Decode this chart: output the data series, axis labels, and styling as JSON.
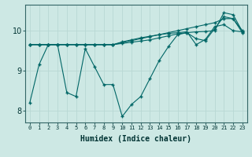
{
  "xlabel": "Humidex (Indice chaleur)",
  "ylabel": "",
  "bg_color": "#cde8e4",
  "line_color": "#006666",
  "grid_color": "#b8d8d4",
  "xlim": [
    -0.5,
    23.5
  ],
  "ylim": [
    7.7,
    10.65
  ],
  "yticks": [
    8,
    9,
    10
  ],
  "xticks": [
    0,
    1,
    2,
    3,
    4,
    5,
    6,
    7,
    8,
    9,
    10,
    11,
    12,
    13,
    14,
    15,
    16,
    17,
    18,
    19,
    20,
    21,
    22,
    23
  ],
  "series": [
    [
      8.2,
      9.15,
      9.65,
      9.65,
      8.45,
      8.35,
      9.55,
      9.1,
      8.65,
      8.65,
      7.85,
      8.15,
      8.35,
      8.8,
      9.25,
      9.6,
      9.9,
      9.95,
      9.8,
      9.75,
      10.05,
      10.35,
      10.3,
      9.95
    ],
    [
      9.65,
      9.65,
      9.65,
      9.65,
      9.65,
      9.65,
      9.65,
      9.65,
      9.65,
      9.65,
      9.68,
      9.71,
      9.74,
      9.77,
      9.82,
      9.87,
      9.92,
      9.95,
      9.97,
      9.98,
      10.0,
      10.45,
      10.4,
      9.98
    ],
    [
      9.65,
      9.65,
      9.65,
      9.65,
      9.65,
      9.65,
      9.65,
      9.65,
      9.65,
      9.65,
      9.7,
      9.75,
      9.8,
      9.85,
      9.9,
      9.95,
      10.0,
      10.05,
      10.1,
      10.15,
      10.2,
      10.3,
      10.3,
      10.0
    ],
    [
      9.65,
      9.65,
      9.65,
      9.65,
      9.65,
      9.65,
      9.65,
      9.65,
      9.65,
      9.65,
      9.72,
      9.77,
      9.82,
      9.86,
      9.9,
      9.93,
      9.95,
      9.97,
      9.65,
      9.78,
      10.1,
      10.15,
      10.0,
      9.97
    ]
  ]
}
